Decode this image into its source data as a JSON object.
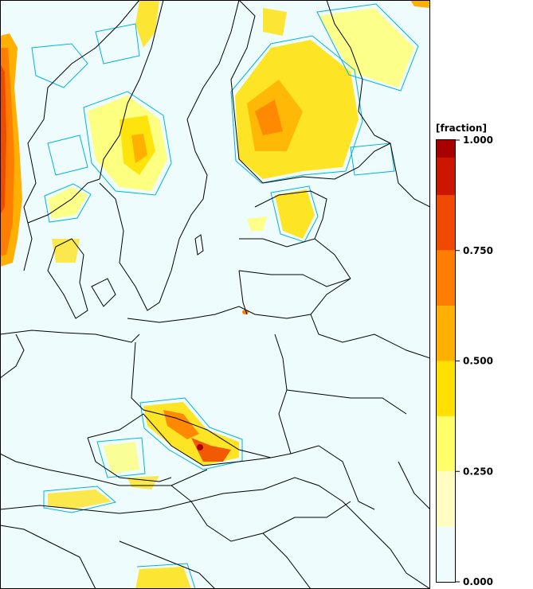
{
  "legend": {
    "title": "[fraction]",
    "tick_labels": [
      "1.000",
      "0.750",
      "0.500",
      "0.250",
      "0.000"
    ],
    "tick_values": [
      1.0,
      0.75,
      0.5,
      0.25,
      0.0
    ],
    "range": [
      0,
      1
    ],
    "bins": [
      {
        "from": 0.0,
        "to": 0.125,
        "color": "#eefcfd"
      },
      {
        "from": 0.125,
        "to": 0.25,
        "color": "#fffdc2"
      },
      {
        "from": 0.25,
        "to": 0.375,
        "color": "#ffff6a"
      },
      {
        "from": 0.375,
        "to": 0.5,
        "color": "#ffe000"
      },
      {
        "from": 0.5,
        "to": 0.625,
        "color": "#ffb000"
      },
      {
        "from": 0.625,
        "to": 0.75,
        "color": "#ff7e00"
      },
      {
        "from": 0.75,
        "to": 0.875,
        "color": "#f04a00"
      },
      {
        "from": 0.875,
        "to": 1.0,
        "color": "#cc1600"
      },
      {
        "from": 1.0,
        "to": 1.0,
        "color": "#a80000"
      }
    ]
  },
  "map": {
    "background_color": "#eefcfd",
    "border_color": "#000000",
    "contour_color": "#00b4d8"
  }
}
